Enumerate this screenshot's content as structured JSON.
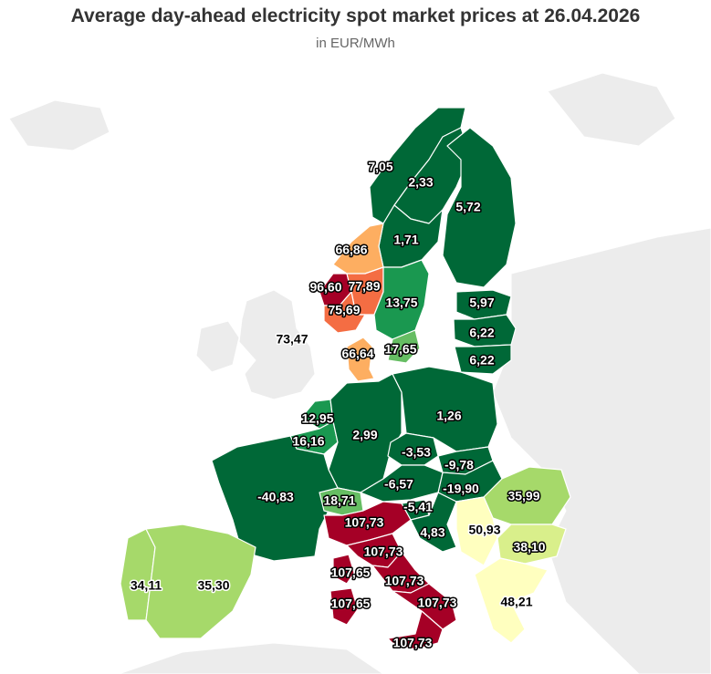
{
  "title": "Average day-ahead electricity spot market prices at 26.04.2026",
  "subtitle": "in EUR/MWh",
  "colors": {
    "very_low": "#006837",
    "low": "#1a9850",
    "low_mid": "#66bd63",
    "mid_low": "#a6d96a",
    "mid": "#d9ef8b",
    "neutral": "#ffffbf",
    "mid_high": "#fee08b",
    "high": "#fdae61",
    "higher": "#f46d43",
    "very_high": "#a50026",
    "background": "#ececec"
  },
  "regions": [
    {
      "id": "no4",
      "value": "7,05",
      "color": "very_low"
    },
    {
      "id": "se1",
      "value": "2,33",
      "color": "very_low"
    },
    {
      "id": "fi",
      "value": "5,72",
      "color": "very_low"
    },
    {
      "id": "se2",
      "value": "1,71",
      "color": "very_low"
    },
    {
      "id": "no3",
      "value": "66,86",
      "color": "high"
    },
    {
      "id": "no5",
      "value": "96,60",
      "color": "very_high"
    },
    {
      "id": "no1",
      "value": "77,89",
      "color": "higher"
    },
    {
      "id": "no2",
      "value": "75,69",
      "color": "higher"
    },
    {
      "id": "se3",
      "value": "13,75",
      "color": "low"
    },
    {
      "id": "se4",
      "value": "17,65",
      "color": "low_mid"
    },
    {
      "id": "gb",
      "value": "73,47",
      "color": "background"
    },
    {
      "id": "dk1",
      "value": "66,64",
      "color": "high"
    },
    {
      "id": "ee",
      "value": "5,97",
      "color": "very_low"
    },
    {
      "id": "lv",
      "value": "6,22",
      "color": "very_low"
    },
    {
      "id": "lt",
      "value": "6,22",
      "color": "very_low"
    },
    {
      "id": "nl",
      "value": "12,95",
      "color": "low"
    },
    {
      "id": "be",
      "value": "16,16",
      "color": "low"
    },
    {
      "id": "de",
      "value": "2,99",
      "color": "very_low"
    },
    {
      "id": "pl",
      "value": "1,26",
      "color": "very_low"
    },
    {
      "id": "cz",
      "value": "-3,53",
      "color": "very_low"
    },
    {
      "id": "sk",
      "value": "-9,78",
      "color": "very_low"
    },
    {
      "id": "hu",
      "value": "-19,90",
      "color": "very_low"
    },
    {
      "id": "at",
      "value": "-6,57",
      "color": "very_low"
    },
    {
      "id": "si",
      "value": "-5,41",
      "color": "very_low"
    },
    {
      "id": "fr",
      "value": "-40,83",
      "color": "very_low"
    },
    {
      "id": "ch",
      "value": "18,71",
      "color": "low_mid"
    },
    {
      "id": "ro",
      "value": "35,99",
      "color": "mid_low"
    },
    {
      "id": "hr",
      "value": "4,83",
      "color": "very_low"
    },
    {
      "id": "rs",
      "value": "50,93",
      "color": "neutral"
    },
    {
      "id": "bg",
      "value": "38,10",
      "color": "mid"
    },
    {
      "id": "gr",
      "value": "48,21",
      "color": "neutral"
    },
    {
      "id": "pt",
      "value": "34,11",
      "color": "mid_low"
    },
    {
      "id": "es",
      "value": "35,30",
      "color": "mid_low"
    },
    {
      "id": "it_north",
      "value": "107,73",
      "color": "very_high"
    },
    {
      "id": "it_cnorth",
      "value": "107,73",
      "color": "very_high"
    },
    {
      "id": "it_csouth",
      "value": "107,73",
      "color": "very_high"
    },
    {
      "id": "it_south",
      "value": "107,73",
      "color": "very_high"
    },
    {
      "id": "it_calabria",
      "value": "107,73",
      "color": "very_high"
    },
    {
      "id": "it_sardinia_a",
      "value": "107,65",
      "color": "very_high"
    },
    {
      "id": "it_sardinia_b",
      "value": "107,65",
      "color": "very_high"
    }
  ]
}
